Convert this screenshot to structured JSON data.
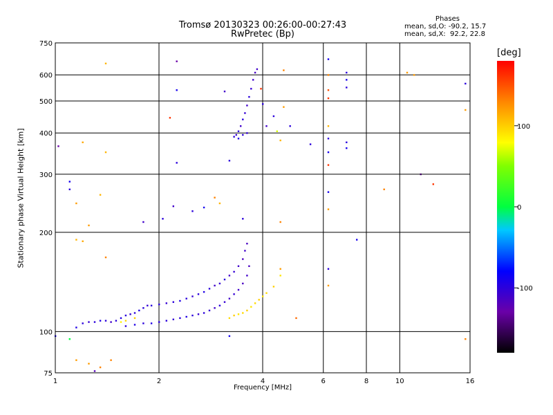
{
  "title_line1": "Tromsø 20130323 00:26:00-00:27:43",
  "title_line2": "RwPretec (Bp)",
  "stats": {
    "header": "Phases",
    "row1_label": "mean, sd,O:",
    "row1_values": "-90.2, 15.7",
    "row2_label": "mean, sd,X:",
    "row2_values": " 92.2, 22.8"
  },
  "colorbar": {
    "unit": "[deg]",
    "range": [
      -180,
      180
    ],
    "ticks": [
      100,
      0,
      -100
    ],
    "tick_labels": [
      "100",
      "0",
      "-100"
    ]
  },
  "chart_data": {
    "type": "scatter",
    "xlabel": "Frequency [MHz]",
    "ylabel": "Stationary phase Virtual Height [km]",
    "xscale": "log",
    "yscale": "log",
    "xlim": [
      1,
      16
    ],
    "ylim": [
      75,
      750
    ],
    "x_ticks": [
      1,
      2,
      4,
      6,
      8,
      10,
      16
    ],
    "x_tick_labels": [
      "1",
      "2",
      "4",
      "6",
      "8",
      "10",
      "16"
    ],
    "y_ticks": [
      75,
      100,
      200,
      300,
      400,
      500,
      600,
      750
    ],
    "y_tick_labels": [
      "75",
      "100",
      "200",
      "300",
      "400",
      "500",
      "600",
      "750"
    ],
    "grid": true,
    "series": [
      {
        "values_note": "O-mode E/F1 trace",
        "points": [
          [
            1.15,
            103,
            -95
          ],
          [
            1.2,
            106,
            -100
          ],
          [
            1.25,
            107,
            -105
          ],
          [
            1.3,
            107,
            -100
          ],
          [
            1.35,
            108,
            -95
          ],
          [
            1.4,
            108,
            -100
          ],
          [
            1.45,
            107,
            -110
          ],
          [
            1.5,
            108,
            -100
          ],
          [
            1.55,
            110,
            -95
          ],
          [
            1.6,
            112,
            -100
          ],
          [
            1.65,
            113,
            -105
          ],
          [
            1.7,
            114,
            -100
          ],
          [
            1.75,
            116,
            -95
          ],
          [
            1.8,
            118,
            -100
          ],
          [
            1.85,
            120,
            -105
          ],
          [
            1.9,
            120,
            -100
          ],
          [
            2.0,
            121,
            -100
          ],
          [
            2.1,
            122,
            -105
          ],
          [
            2.2,
            123,
            -100
          ],
          [
            2.3,
            124,
            -95
          ],
          [
            2.4,
            126,
            -100
          ],
          [
            2.5,
            128,
            -105
          ],
          [
            2.6,
            130,
            -100
          ],
          [
            2.7,
            132,
            -95
          ],
          [
            2.8,
            135,
            -100
          ],
          [
            2.9,
            138,
            -110
          ],
          [
            3.0,
            140,
            -105
          ],
          [
            3.1,
            144,
            -100
          ],
          [
            3.2,
            148,
            -110
          ],
          [
            3.3,
            152,
            -105
          ],
          [
            3.4,
            158,
            -110
          ],
          [
            3.5,
            166,
            -115
          ],
          [
            3.55,
            176,
            -110
          ],
          [
            3.6,
            185,
            -115
          ]
        ]
      },
      {
        "values_note": "second O trace",
        "points": [
          [
            1.6,
            104,
            -100
          ],
          [
            1.7,
            105,
            -95
          ],
          [
            1.8,
            106,
            -100
          ],
          [
            1.9,
            106,
            -95
          ],
          [
            2.0,
            107,
            -100
          ],
          [
            2.1,
            108,
            -100
          ],
          [
            2.2,
            109,
            -105
          ],
          [
            2.3,
            110,
            -100
          ],
          [
            2.4,
            111,
            -95
          ],
          [
            2.5,
            112,
            -100
          ],
          [
            2.6,
            113,
            -105
          ],
          [
            2.7,
            114,
            -100
          ],
          [
            2.8,
            116,
            -105
          ],
          [
            2.9,
            118,
            -110
          ],
          [
            3.0,
            120,
            -100
          ],
          [
            3.1,
            123,
            -105
          ],
          [
            3.2,
            126,
            -110
          ],
          [
            3.3,
            130,
            -105
          ],
          [
            3.4,
            134,
            -110
          ],
          [
            3.5,
            140,
            -115
          ],
          [
            3.6,
            148,
            -110
          ],
          [
            3.65,
            158,
            -115
          ]
        ]
      },
      {
        "values_note": "X-mode trace",
        "points": [
          [
            3.2,
            110,
            95
          ],
          [
            3.3,
            112,
            100
          ],
          [
            3.4,
            113,
            90
          ],
          [
            3.5,
            114,
            95
          ],
          [
            3.6,
            116,
            100
          ],
          [
            3.7,
            119,
            90
          ],
          [
            3.8,
            122,
            95
          ],
          [
            3.9,
            125,
            100
          ],
          [
            4.0,
            128,
            90
          ],
          [
            4.1,
            131,
            95
          ],
          [
            4.3,
            137,
            100
          ],
          [
            4.5,
            148,
            90
          ],
          [
            1.6,
            108,
            95
          ],
          [
            1.7,
            110,
            100
          ],
          [
            1.55,
            107,
            85
          ]
        ]
      },
      {
        "values_note": "F2 O trace",
        "points": [
          [
            3.3,
            390,
            -100
          ],
          [
            3.35,
            395,
            -105
          ],
          [
            3.4,
            405,
            -100
          ],
          [
            3.45,
            420,
            -110
          ],
          [
            3.5,
            440,
            -100
          ],
          [
            3.55,
            460,
            -105
          ],
          [
            3.6,
            485,
            -110
          ],
          [
            3.65,
            515,
            -100
          ],
          [
            3.7,
            545,
            -105
          ],
          [
            3.75,
            580,
            -110
          ],
          [
            3.8,
            610,
            -115
          ],
          [
            3.85,
            625,
            -110
          ],
          [
            3.4,
            385,
            -95
          ],
          [
            3.5,
            395,
            -100
          ],
          [
            3.6,
            400,
            -105
          ]
        ]
      },
      {
        "values_note": "scattered points",
        "points": [
          [
            1.15,
            190,
            110
          ],
          [
            1.2,
            188,
            115
          ],
          [
            1.2,
            375,
            115
          ],
          [
            1.25,
            210,
            120
          ],
          [
            1.35,
            260,
            110
          ],
          [
            1.4,
            168,
            130
          ],
          [
            1.4,
            650,
            110
          ],
          [
            1.4,
            350,
            110
          ],
          [
            1.1,
            95,
            0
          ],
          [
            1.02,
            365,
            -130
          ],
          [
            1.1,
            285,
            -90
          ],
          [
            1.1,
            270,
            -100
          ],
          [
            1.15,
            245,
            120
          ],
          [
            2.25,
            660,
            -130
          ],
          [
            2.25,
            540,
            -90
          ],
          [
            2.15,
            445,
            160
          ],
          [
            2.25,
            325,
            -100
          ],
          [
            1.8,
            215,
            -110
          ],
          [
            2.05,
            220,
            -100
          ],
          [
            2.2,
            240,
            -110
          ],
          [
            2.5,
            232,
            -100
          ],
          [
            2.7,
            238,
            -90
          ],
          [
            2.9,
            255,
            130
          ],
          [
            3.0,
            245,
            110
          ],
          [
            3.5,
            220,
            -100
          ],
          [
            5.5,
            370,
            -100
          ],
          [
            6.2,
            670,
            -90
          ],
          [
            6.2,
            600,
            130
          ],
          [
            6.2,
            540,
            150
          ],
          [
            6.2,
            510,
            160
          ],
          [
            6.2,
            420,
            110
          ],
          [
            6.2,
            385,
            -100
          ],
          [
            6.2,
            350,
            -90
          ],
          [
            6.2,
            320,
            160
          ],
          [
            6.2,
            265,
            -90
          ],
          [
            6.2,
            235,
            120
          ],
          [
            6.2,
            155,
            -100
          ],
          [
            6.2,
            138,
            120
          ],
          [
            7.0,
            610,
            -100
          ],
          [
            7.0,
            580,
            -90
          ],
          [
            7.0,
            550,
            -100
          ],
          [
            7.0,
            375,
            -100
          ],
          [
            7.0,
            360,
            -90
          ],
          [
            7.5,
            190,
            -90
          ],
          [
            9.0,
            270,
            130
          ],
          [
            10.5,
            610,
            120
          ],
          [
            11.0,
            600,
            120
          ],
          [
            11.5,
            300,
            -150
          ],
          [
            12.5,
            280,
            160
          ],
          [
            15.5,
            565,
            -100
          ],
          [
            15.5,
            470,
            120
          ],
          [
            15.5,
            95,
            130
          ],
          [
            4.0,
            490,
            -100
          ],
          [
            4.1,
            420,
            -110
          ],
          [
            4.3,
            450,
            -100
          ],
          [
            4.4,
            405,
            70
          ],
          [
            4.5,
            380,
            110
          ],
          [
            4.6,
            480,
            120
          ],
          [
            4.8,
            420,
            -100
          ],
          [
            4.6,
            620,
            130
          ],
          [
            3.95,
            545,
            160
          ],
          [
            4.5,
            215,
            130
          ],
          [
            4.5,
            155,
            120
          ],
          [
            5.0,
            110,
            140
          ],
          [
            3.2,
            330,
            -100
          ],
          [
            3.1,
            535,
            -110
          ],
          [
            3.2,
            97,
            -90
          ],
          [
            1.15,
            82,
            120
          ],
          [
            1.25,
            80,
            120
          ],
          [
            1.45,
            82,
            130
          ],
          [
            1.35,
            78,
            130
          ],
          [
            1.3,
            76,
            -120
          ],
          [
            1.0,
            97,
            -90
          ]
        ]
      }
    ]
  }
}
